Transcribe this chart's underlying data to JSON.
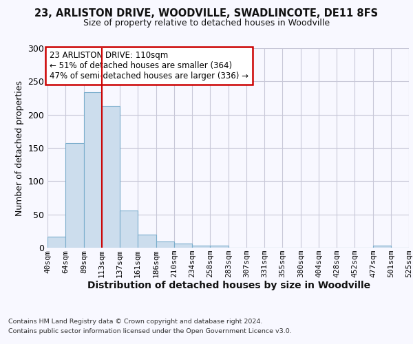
{
  "title": "23, ARLISTON DRIVE, WOODVILLE, SWADLINCOTE, DE11 8FS",
  "subtitle": "Size of property relative to detached houses in Woodville",
  "xlabel": "Distribution of detached houses by size in Woodville",
  "ylabel": "Number of detached properties",
  "bar_values": [
    17,
    157,
    234,
    213,
    56,
    20,
    9,
    6,
    3,
    3,
    0,
    0,
    0,
    0,
    0,
    0,
    0,
    0,
    3,
    0
  ],
  "bin_edges": [
    40,
    64,
    89,
    113,
    137,
    161,
    186,
    210,
    234,
    258,
    283,
    307,
    331,
    355,
    380,
    404,
    428,
    452,
    477,
    501,
    525
  ],
  "tick_labels": [
    "40sqm",
    "64sqm",
    "89sqm",
    "113sqm",
    "137sqm",
    "161sqm",
    "186sqm",
    "210sqm",
    "234sqm",
    "258sqm",
    "283sqm",
    "307sqm",
    "331sqm",
    "355sqm",
    "380sqm",
    "404sqm",
    "428sqm",
    "452sqm",
    "477sqm",
    "501sqm",
    "525sqm"
  ],
  "bar_color": "#ccdded",
  "bar_edge_color": "#7aadcc",
  "vline_color": "#cc0000",
  "annotation_text_line1": "23 ARLISTON DRIVE: 110sqm",
  "annotation_text_line2": "← 51% of detached houses are smaller (364)",
  "annotation_text_line3": "47% of semi-detached houses are larger (336) →",
  "annotation_box_color": "#cc0000",
  "ylim": [
    0,
    300
  ],
  "yticks": [
    0,
    50,
    100,
    150,
    200,
    250,
    300
  ],
  "background_color": "#f8f8ff",
  "grid_color": "#c8c8d8",
  "footer1": "Contains HM Land Registry data © Crown copyright and database right 2024.",
  "footer2": "Contains public sector information licensed under the Open Government Licence v3.0.",
  "title_fontsize": 10.5,
  "subtitle_fontsize": 9,
  "ylabel_fontsize": 9,
  "xlabel_fontsize": 10,
  "ytick_fontsize": 9,
  "xtick_fontsize": 8
}
